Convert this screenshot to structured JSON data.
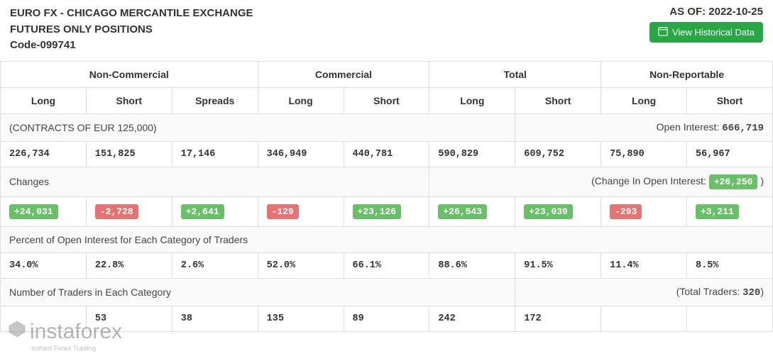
{
  "header": {
    "title_line1": "EURO FX - CHICAGO MERCANTILE EXCHANGE",
    "title_line2": "FUTURES ONLY POSITIONS",
    "title_line3": "Code-099741",
    "as_of_label": "AS OF: 2022-10-25",
    "historical_btn": "View Historical Data"
  },
  "columns": {
    "groups": [
      "Non-Commercial",
      "Commercial",
      "Total",
      "Non-Reportable"
    ],
    "sub": [
      "Long",
      "Short",
      "Spreads",
      "Long",
      "Short",
      "Long",
      "Short",
      "Long",
      "Short"
    ]
  },
  "sections": {
    "contracts": {
      "label": "(CONTRACTS OF EUR 125,000)",
      "open_interest_label": "Open Interest:",
      "open_interest_value": "666,719",
      "values": [
        "226,734",
        "151,825",
        "17,146",
        "346,949",
        "440,781",
        "590,829",
        "609,752",
        "75,890",
        "56,967"
      ]
    },
    "changes": {
      "label": "Changes",
      "change_oi_label": "(Change In Open Interest:",
      "change_oi_value": "+26,250",
      "change_oi_suffix": ")",
      "values": [
        {
          "v": "+24,031",
          "pos": true
        },
        {
          "v": "-2,728",
          "pos": false
        },
        {
          "v": "+2,641",
          "pos": true
        },
        {
          "v": "-129",
          "pos": false
        },
        {
          "v": "+23,126",
          "pos": true
        },
        {
          "v": "+26,543",
          "pos": true
        },
        {
          "v": "+23,039",
          "pos": true
        },
        {
          "v": "-293",
          "pos": false
        },
        {
          "v": "+3,211",
          "pos": true
        }
      ]
    },
    "percent": {
      "label": "Percent of Open Interest for Each Category of Traders",
      "values": [
        "34.0%",
        "22.8%",
        "2.6%",
        "52.0%",
        "66.1%",
        "88.6%",
        "91.5%",
        "11.4%",
        "8.5%"
      ]
    },
    "traders": {
      "label": "Number of Traders in Each Category",
      "total_label": "(Total Traders:",
      "total_value": "320",
      "total_suffix": ")",
      "values": [
        "",
        "53",
        "38",
        "135",
        "89",
        "242",
        "172",
        "",
        ""
      ]
    }
  },
  "watermark": {
    "main": "instaforex",
    "sub": "Instant Forex Trading"
  },
  "colors": {
    "pos_badge": "#6abf69",
    "neg_badge": "#e57373",
    "btn_green": "#28a745",
    "border": "#dddddd"
  }
}
